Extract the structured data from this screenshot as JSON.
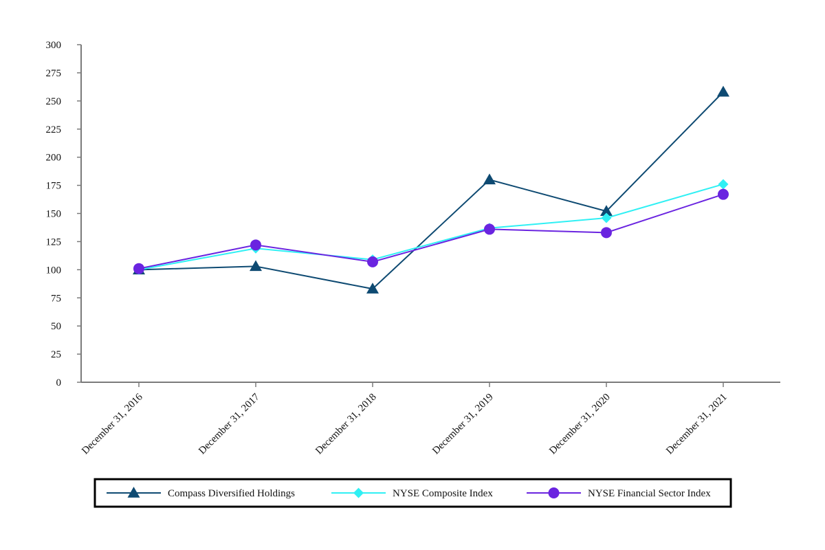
{
  "chart_data": {
    "type": "line",
    "title": "",
    "xlabel": "",
    "ylabel": "",
    "categories": [
      "December 31, 2016",
      "December 31, 2017",
      "December 31, 2018",
      "December 31, 2019",
      "December 31, 2020",
      "December 31, 2021"
    ],
    "ylim": [
      0,
      300
    ],
    "yticks": [
      0,
      25,
      50,
      75,
      100,
      125,
      150,
      175,
      200,
      225,
      250,
      275,
      300
    ],
    "grid": false,
    "legend_position": "bottom",
    "series": [
      {
        "name": "Compass Diversified Holdings",
        "color": "#0e4a72",
        "marker": "triangle",
        "values": [
          100,
          103,
          83,
          180,
          152,
          258
        ]
      },
      {
        "name": "NYSE Composite Index",
        "color": "#2ff0f4",
        "marker": "diamond",
        "values": [
          100,
          119,
          109,
          137,
          146,
          176
        ]
      },
      {
        "name": "NYSE Financial Sector Index",
        "color": "#6a24e0",
        "marker": "circle",
        "values": [
          101,
          122,
          107,
          136,
          133,
          167
        ]
      }
    ]
  }
}
